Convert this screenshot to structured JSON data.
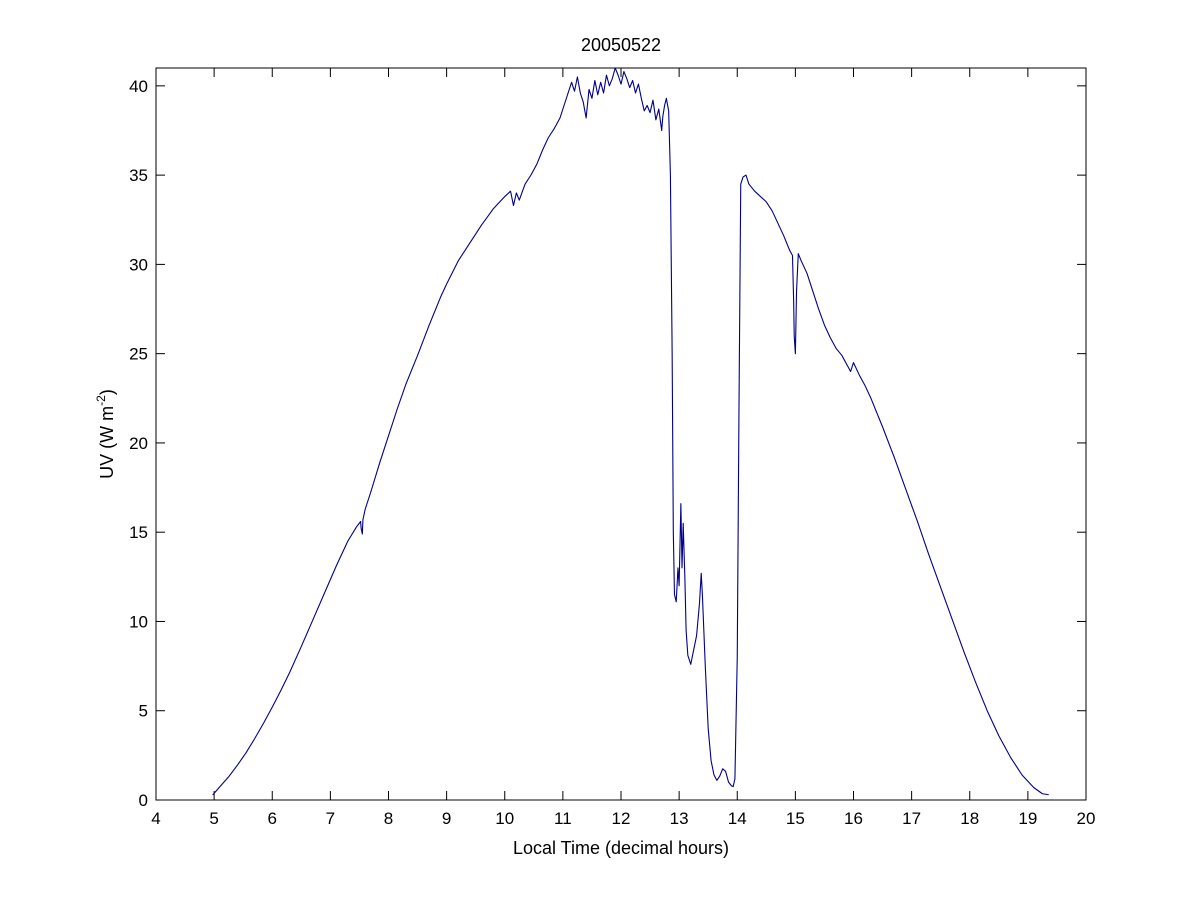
{
  "chart_data": {
    "type": "line",
    "title": "20050522",
    "xlabel": "Local Time (decimal hours)",
    "ylabel_main": "UV (W m",
    "ylabel_exponent": "-2",
    "ylabel_close": ")",
    "xlim": [
      4,
      20
    ],
    "ylim": [
      0,
      41
    ],
    "xticks": [
      4,
      5,
      6,
      7,
      8,
      9,
      10,
      11,
      12,
      13,
      14,
      15,
      16,
      17,
      18,
      19,
      20
    ],
    "yticks": [
      0,
      5,
      10,
      15,
      20,
      25,
      30,
      35,
      40
    ],
    "grid": false,
    "legend": "none",
    "series": [
      {
        "color": "#00008B",
        "x": [
          4.98,
          5.1,
          5.25,
          5.4,
          5.55,
          5.7,
          5.85,
          6.0,
          6.15,
          6.3,
          6.5,
          6.7,
          6.9,
          7.1,
          7.3,
          7.45,
          7.52,
          7.53,
          7.55,
          7.56,
          7.6,
          7.7,
          7.85,
          8.0,
          8.15,
          8.3,
          8.5,
          8.7,
          8.9,
          9.0,
          9.2,
          9.4,
          9.6,
          9.8,
          10.0,
          10.1,
          10.15,
          10.2,
          10.25,
          10.35,
          10.45,
          10.55,
          10.65,
          10.75,
          10.85,
          10.95,
          11.05,
          11.15,
          11.2,
          11.25,
          11.3,
          11.35,
          11.4,
          11.45,
          11.5,
          11.55,
          11.6,
          11.65,
          11.7,
          11.75,
          11.8,
          11.85,
          11.9,
          11.95,
          12.0,
          12.05,
          12.1,
          12.15,
          12.2,
          12.25,
          12.3,
          12.35,
          12.4,
          12.45,
          12.5,
          12.55,
          12.6,
          12.65,
          12.7,
          12.72,
          12.75,
          12.78,
          12.82,
          12.85,
          12.88,
          12.9,
          12.92,
          12.95,
          12.98,
          13.0,
          13.03,
          13.05,
          13.07,
          13.1,
          13.12,
          13.15,
          13.2,
          13.25,
          13.3,
          13.35,
          13.38,
          13.4,
          13.45,
          13.5,
          13.55,
          13.6,
          13.65,
          13.7,
          13.75,
          13.8,
          13.85,
          13.9,
          13.93,
          13.96,
          14.0,
          14.03,
          14.06,
          14.1,
          14.15,
          14.2,
          14.3,
          14.4,
          14.5,
          14.6,
          14.7,
          14.8,
          14.9,
          14.95,
          14.97,
          14.98,
          15.0,
          15.02,
          15.05,
          15.1,
          15.2,
          15.3,
          15.4,
          15.5,
          15.6,
          15.7,
          15.8,
          15.9,
          15.95,
          16.0,
          16.1,
          16.2,
          16.3,
          16.5,
          16.7,
          16.9,
          17.1,
          17.3,
          17.5,
          17.7,
          17.9,
          18.1,
          18.3,
          18.5,
          18.7,
          18.9,
          19.1,
          19.25,
          19.35
        ],
        "y": [
          0.3,
          0.75,
          1.3,
          1.95,
          2.65,
          3.45,
          4.3,
          5.2,
          6.15,
          7.15,
          8.6,
          10.1,
          11.6,
          13.1,
          14.5,
          15.3,
          15.6,
          15.2,
          14.9,
          15.7,
          16.3,
          17.3,
          18.9,
          20.4,
          21.9,
          23.3,
          24.9,
          26.6,
          28.2,
          28.9,
          30.2,
          31.2,
          32.2,
          33.1,
          33.8,
          34.1,
          33.3,
          34.0,
          33.6,
          34.5,
          35.0,
          35.6,
          36.4,
          37.1,
          37.6,
          38.2,
          39.2,
          40.2,
          39.7,
          40.5,
          39.6,
          39.1,
          38.2,
          39.8,
          39.3,
          40.3,
          39.5,
          40.2,
          39.6,
          40.6,
          40.0,
          40.4,
          41.0,
          40.6,
          40.1,
          40.8,
          40.4,
          39.9,
          40.3,
          39.6,
          40.1,
          39.3,
          38.6,
          38.9,
          38.5,
          39.2,
          38.1,
          38.7,
          37.5,
          38.3,
          38.9,
          39.3,
          38.6,
          35.0,
          25.0,
          15.0,
          11.5,
          11.1,
          13.0,
          12.0,
          16.6,
          13.0,
          15.5,
          12.3,
          9.5,
          8.1,
          7.6,
          8.4,
          9.2,
          11.0,
          12.7,
          11.5,
          7.5,
          4.0,
          2.2,
          1.4,
          1.1,
          1.35,
          1.75,
          1.6,
          1.0,
          0.8,
          0.75,
          1.2,
          8.0,
          22.0,
          34.5,
          34.9,
          35.0,
          34.5,
          34.1,
          33.8,
          33.5,
          33.0,
          32.3,
          31.6,
          30.8,
          30.5,
          28.0,
          26.0,
          25.0,
          28.5,
          30.6,
          30.2,
          29.5,
          28.5,
          27.5,
          26.6,
          25.9,
          25.3,
          24.9,
          24.3,
          24.0,
          24.5,
          23.8,
          23.2,
          22.5,
          20.9,
          19.2,
          17.4,
          15.6,
          13.7,
          11.9,
          10.1,
          8.3,
          6.6,
          5.0,
          3.6,
          2.4,
          1.4,
          0.7,
          0.35,
          0.3
        ]
      }
    ]
  }
}
